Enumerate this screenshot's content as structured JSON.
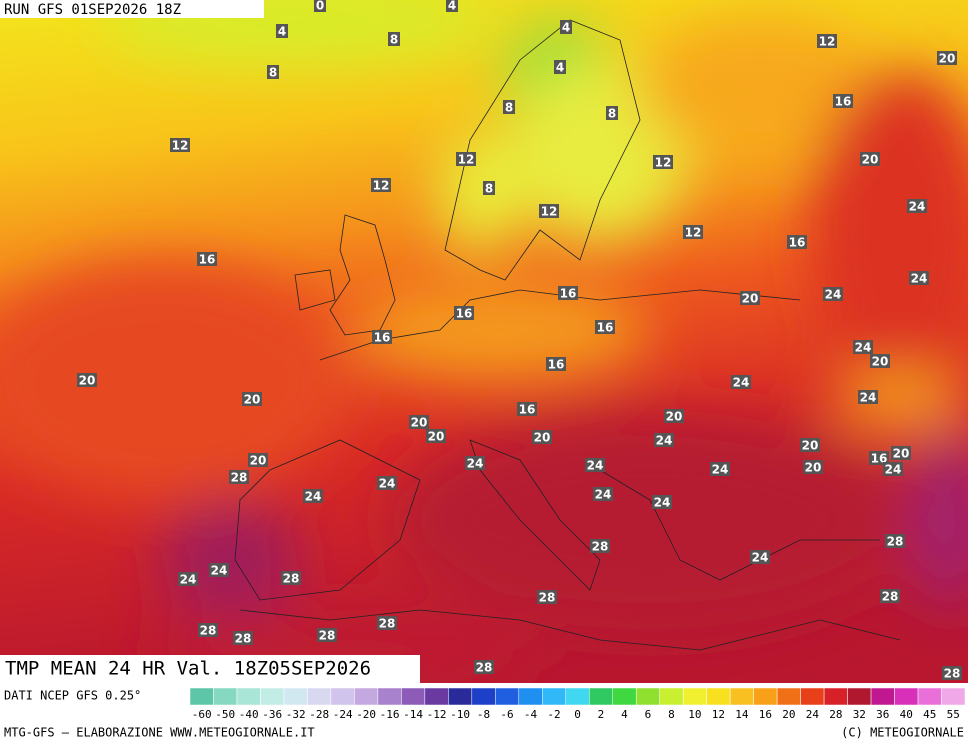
{
  "header": {
    "run": "RUN GFS 01SEP2026 18Z"
  },
  "title": "TMP MEAN 24 HR Val. 18Z05SEP2026",
  "source": "DATI NCEP GFS 0.25°",
  "credit": "MTG-GFS — ELABORAZIONE WWW.METEOGIORNALE.IT",
  "copyright": "(C) METEOGIORNALE",
  "colorbar": {
    "labels": [
      -60,
      -50,
      -40,
      -36,
      -32,
      -28,
      -24,
      -20,
      -16,
      -14,
      -12,
      -10,
      -8,
      -6,
      -4,
      -2,
      0,
      2,
      4,
      6,
      8,
      10,
      12,
      14,
      16,
      20,
      24,
      28,
      32,
      36,
      40,
      45,
      55
    ],
    "colors": [
      "#5ec6a8",
      "#86d8c0",
      "#a9e6d8",
      "#c2ece6",
      "#d2e8f0",
      "#d8d8f0",
      "#d0c4ec",
      "#c4a8e0",
      "#a882cc",
      "#8c5cb8",
      "#6a3aa0",
      "#2a2a9a",
      "#1e40c8",
      "#2060e0",
      "#2090f0",
      "#30b8f8",
      "#40d8f0",
      "#30c860",
      "#40d840",
      "#90e030",
      "#c8f030",
      "#f0f030",
      "#f8e020",
      "#f8c020",
      "#f8a018",
      "#f07018",
      "#e84018",
      "#d82028",
      "#b01830",
      "#c01890",
      "#d830b8",
      "#e870d8",
      "#f0a8e8"
    ]
  },
  "map_labels": [
    0,
    4,
    4,
    8,
    8,
    4,
    4,
    12,
    20,
    16,
    8,
    8,
    12,
    12,
    12,
    20,
    12,
    8,
    12,
    12,
    16,
    24,
    16,
    24,
    16,
    20,
    24,
    16,
    16,
    16,
    24,
    20,
    16,
    20,
    24,
    20,
    24,
    16,
    20,
    20,
    20,
    20,
    24,
    20,
    20,
    16,
    20,
    24,
    24,
    24,
    20,
    24,
    28,
    24,
    24,
    24,
    24,
    28,
    28,
    24,
    24,
    24,
    28,
    28,
    28,
    28,
    28,
    28,
    28,
    28,
    28
  ]
}
